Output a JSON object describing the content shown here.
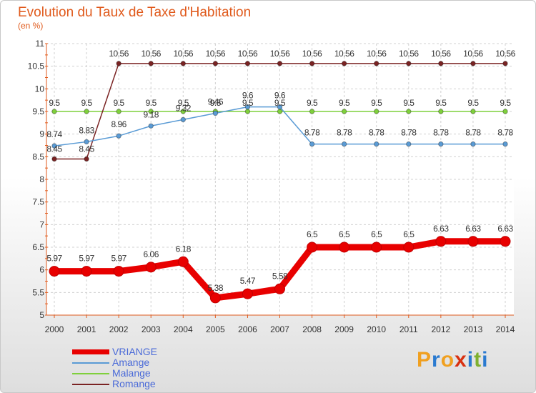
{
  "chart_data": {
    "type": "line",
    "title": "Evolution du Taux de Taxe d'Habitation",
    "subtitle": "(en %)",
    "x": [
      "2000",
      "2001",
      "2002",
      "2003",
      "2004",
      "2005",
      "2006",
      "2007",
      "2008",
      "2009",
      "2010",
      "2011",
      "2012",
      "2013",
      "2014"
    ],
    "ylim": [
      5,
      11
    ],
    "yticks": [
      "5",
      "5.5",
      "6",
      "6.5",
      "7",
      "7.5",
      "8",
      "8.5",
      "9",
      "9.5",
      "10",
      "10.5",
      "11"
    ],
    "grid": true,
    "legend_position": "bottom-left",
    "series": [
      {
        "name": "VRIANGE",
        "color": "#e80000",
        "values": [
          5.97,
          5.97,
          5.97,
          6.06,
          6.18,
          5.38,
          5.47,
          5.58,
          6.5,
          6.5,
          6.5,
          6.5,
          6.63,
          6.63,
          6.63
        ],
        "labels": [
          "5.97",
          "5.97",
          "5.97",
          "6.06",
          "6.18",
          "5.38",
          "5.47",
          "5.58",
          "6.5",
          "6.5",
          "6.5",
          "6.5",
          "6.63",
          "6.63",
          "6.63"
        ]
      },
      {
        "name": "Amange",
        "color": "#5a9bd5",
        "values": [
          8.74,
          8.83,
          8.96,
          9.18,
          9.32,
          9.46,
          9.6,
          9.6,
          8.78,
          8.78,
          8.78,
          8.78,
          8.78,
          8.78,
          8.78
        ],
        "labels": [
          "8.74",
          "8.83",
          "8.96",
          "9.18",
          "9.32",
          "9.46",
          "9.6",
          "9.6",
          "8.78",
          "8.78",
          "8.78",
          "8.78",
          "8.78",
          "8.78",
          "8.78"
        ]
      },
      {
        "name": "Malange",
        "color": "#7fd03c",
        "values": [
          9.5,
          9.5,
          9.5,
          9.5,
          9.5,
          9.5,
          9.5,
          9.5,
          9.5,
          9.5,
          9.5,
          9.5,
          9.5,
          9.5,
          9.5
        ],
        "labels": [
          "9.5",
          "9.5",
          "9.5",
          "9.5",
          "9.5",
          "9.5",
          "9.5",
          "9.5",
          "9.5",
          "9.5",
          "9.5",
          "9.5",
          "9.5",
          "9.5",
          "9.5"
        ]
      },
      {
        "name": "Romange",
        "color": "#7a2323",
        "values": [
          8.45,
          8.45,
          10.56,
          10.56,
          10.56,
          10.56,
          10.56,
          10.56,
          10.56,
          10.56,
          10.56,
          10.56,
          10.56,
          10.56,
          10.56
        ],
        "labels": [
          "8.45",
          "8.45",
          "10.56",
          "10.56",
          "10.56",
          "10.56",
          "10.56",
          "10.56",
          "10.56",
          "10.56",
          "10.56",
          "10.56",
          "10.56",
          "10.56",
          "10.56"
        ]
      }
    ]
  },
  "brand": {
    "text": "Proxiti",
    "colors": [
      "#f0a020",
      "#2a7ad0",
      "#f0a020",
      "#d83010",
      "#2a7ad0",
      "#7fb030",
      "#2a7ad0"
    ]
  }
}
